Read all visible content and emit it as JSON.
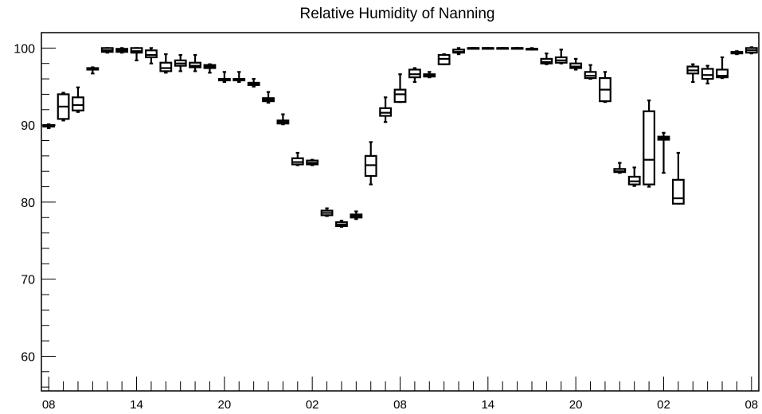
{
  "chart_data": {
    "type": "box",
    "title": "Relative Humidity of Nanning",
    "xlabel": "",
    "ylabel": "",
    "ylim": [
      55.5,
      102
    ],
    "xlim": [
      -0.5,
      48.5
    ],
    "y_ticks": [
      60,
      70,
      80,
      90,
      100
    ],
    "y_minor_step": 2,
    "x_ticks": [
      {
        "x": 0,
        "label": "08"
      },
      {
        "x": 6,
        "label": "14"
      },
      {
        "x": 12,
        "label": "20"
      },
      {
        "x": 18,
        "label": "02"
      },
      {
        "x": 24,
        "label": "08"
      },
      {
        "x": 30,
        "label": "14"
      },
      {
        "x": 36,
        "label": "20"
      },
      {
        "x": 42,
        "label": "02"
      },
      {
        "x": 48,
        "label": "08"
      }
    ],
    "legend": "none",
    "grid": false,
    "boxes": [
      {
        "x": 0,
        "min": 89.6,
        "q1": 89.8,
        "median": 89.9,
        "q3": 90.0,
        "max": 90.1
      },
      {
        "x": 1,
        "min": 90.6,
        "q1": 90.8,
        "median": 92.4,
        "q3": 94.0,
        "max": 94.2
      },
      {
        "x": 2,
        "min": 91.7,
        "q1": 91.9,
        "median": 92.6,
        "q3": 93.6,
        "max": 94.9
      },
      {
        "x": 3,
        "min": 96.7,
        "q1": 97.2,
        "median": 97.3,
        "q3": 97.4,
        "max": 97.5
      },
      {
        "x": 4,
        "min": 99.4,
        "q1": 99.5,
        "median": 99.7,
        "q3": 100.0,
        "max": 100.0
      },
      {
        "x": 5,
        "min": 99.4,
        "q1": 99.5,
        "median": 99.7,
        "q3": 99.9,
        "max": 100.0
      },
      {
        "x": 6,
        "min": 98.4,
        "q1": 99.4,
        "median": 99.6,
        "q3": 100.0,
        "max": 100.0
      },
      {
        "x": 7,
        "min": 98.0,
        "q1": 98.8,
        "median": 99.1,
        "q3": 99.7,
        "max": 100.0
      },
      {
        "x": 8,
        "min": 96.8,
        "q1": 97.0,
        "median": 97.4,
        "q3": 98.1,
        "max": 99.2
      },
      {
        "x": 9,
        "min": 97.0,
        "q1": 97.7,
        "median": 98.0,
        "q3": 98.4,
        "max": 99.1
      },
      {
        "x": 10,
        "min": 97.0,
        "q1": 97.5,
        "median": 97.7,
        "q3": 98.1,
        "max": 99.1
      },
      {
        "x": 11,
        "min": 96.8,
        "q1": 97.4,
        "median": 97.6,
        "q3": 97.8,
        "max": 97.9
      },
      {
        "x": 12,
        "min": 95.6,
        "q1": 95.8,
        "median": 95.9,
        "q3": 96.0,
        "max": 96.9
      },
      {
        "x": 13,
        "min": 95.6,
        "q1": 95.8,
        "median": 95.9,
        "q3": 96.0,
        "max": 96.9
      },
      {
        "x": 14,
        "min": 95.0,
        "q1": 95.2,
        "median": 95.3,
        "q3": 95.5,
        "max": 96.0
      },
      {
        "x": 15,
        "min": 92.9,
        "q1": 93.1,
        "median": 93.3,
        "q3": 93.5,
        "max": 94.3
      },
      {
        "x": 16,
        "min": 90.1,
        "q1": 90.2,
        "median": 90.4,
        "q3": 90.6,
        "max": 91.4
      },
      {
        "x": 17,
        "min": 84.8,
        "q1": 84.9,
        "median": 85.2,
        "q3": 85.7,
        "max": 86.4
      },
      {
        "x": 18,
        "min": 84.8,
        "q1": 84.9,
        "median": 85.1,
        "q3": 85.4,
        "max": 85.5
      },
      {
        "x": 19,
        "min": 78.2,
        "q1": 78.3,
        "median": 78.6,
        "q3": 78.9,
        "max": 79.2
      },
      {
        "x": 20,
        "min": 76.8,
        "q1": 76.9,
        "median": 77.1,
        "q3": 77.4,
        "max": 77.6
      },
      {
        "x": 21,
        "min": 77.8,
        "q1": 78.0,
        "median": 78.2,
        "q3": 78.4,
        "max": 78.8
      },
      {
        "x": 22,
        "min": 82.3,
        "q1": 83.4,
        "median": 84.8,
        "q3": 86.0,
        "max": 87.8
      },
      {
        "x": 23,
        "min": 90.4,
        "q1": 91.2,
        "median": 91.6,
        "q3": 92.2,
        "max": 93.6
      },
      {
        "x": 24,
        "min": 93.0,
        "q1": 93.0,
        "median": 94.0,
        "q3": 94.6,
        "max": 96.6
      },
      {
        "x": 25,
        "min": 95.6,
        "q1": 96.2,
        "median": 96.6,
        "q3": 97.2,
        "max": 97.4
      },
      {
        "x": 26,
        "min": 96.2,
        "q1": 96.3,
        "median": 96.5,
        "q3": 96.6,
        "max": 96.9
      },
      {
        "x": 27,
        "min": 97.9,
        "q1": 97.9,
        "median": 98.6,
        "q3": 99.1,
        "max": 99.2
      },
      {
        "x": 28,
        "min": 99.2,
        "q1": 99.4,
        "median": 99.5,
        "q3": 99.8,
        "max": 100.0
      },
      {
        "x": 29,
        "min": 100.0,
        "q1": 100.0,
        "median": 100.0,
        "q3": 100.0,
        "max": 100.0
      },
      {
        "x": 30,
        "min": 100.0,
        "q1": 100.0,
        "median": 100.0,
        "q3": 100.0,
        "max": 100.0
      },
      {
        "x": 31,
        "min": 100.0,
        "q1": 100.0,
        "median": 100.0,
        "q3": 100.0,
        "max": 100.0
      },
      {
        "x": 32,
        "min": 100.0,
        "q1": 100.0,
        "median": 100.0,
        "q3": 100.0,
        "max": 100.0
      },
      {
        "x": 33,
        "min": 99.8,
        "q1": 99.8,
        "median": 99.9,
        "q3": 99.9,
        "max": 100.0
      },
      {
        "x": 34,
        "min": 97.9,
        "q1": 98.0,
        "median": 98.2,
        "q3": 98.6,
        "max": 99.3
      },
      {
        "x": 35,
        "min": 98.0,
        "q1": 98.1,
        "median": 98.4,
        "q3": 98.8,
        "max": 99.8
      },
      {
        "x": 36,
        "min": 97.2,
        "q1": 97.4,
        "median": 97.6,
        "q3": 98.0,
        "max": 98.6
      },
      {
        "x": 37,
        "min": 96.0,
        "q1": 96.1,
        "median": 96.4,
        "q3": 96.9,
        "max": 97.8
      },
      {
        "x": 38,
        "min": 93.0,
        "q1": 93.1,
        "median": 94.6,
        "q3": 96.1,
        "max": 96.9
      },
      {
        "x": 39,
        "min": 83.8,
        "q1": 83.9,
        "median": 84.0,
        "q3": 84.3,
        "max": 85.1
      },
      {
        "x": 40,
        "min": 82.1,
        "q1": 82.3,
        "median": 82.7,
        "q3": 83.3,
        "max": 84.5
      },
      {
        "x": 41,
        "min": 82.0,
        "q1": 82.3,
        "median": 85.5,
        "q3": 91.8,
        "max": 93.2
      },
      {
        "x": 42,
        "min": 83.8,
        "q1": 88.1,
        "median": 88.3,
        "q3": 88.5,
        "max": 89.0
      },
      {
        "x": 43,
        "min": 79.8,
        "q1": 79.8,
        "median": 80.5,
        "q3": 82.9,
        "max": 86.4
      },
      {
        "x": 44,
        "min": 95.6,
        "q1": 96.7,
        "median": 97.1,
        "q3": 97.6,
        "max": 97.9
      },
      {
        "x": 45,
        "min": 95.4,
        "q1": 96.0,
        "median": 96.5,
        "q3": 97.3,
        "max": 97.7
      },
      {
        "x": 46,
        "min": 96.1,
        "q1": 96.2,
        "median": 96.4,
        "q3": 97.2,
        "max": 98.8
      },
      {
        "x": 47,
        "min": 99.2,
        "q1": 99.3,
        "median": 99.4,
        "q3": 99.5,
        "max": 99.6
      },
      {
        "x": 48,
        "min": 99.3,
        "q1": 99.4,
        "median": 99.7,
        "q3": 100.0,
        "max": 100.1
      }
    ]
  }
}
